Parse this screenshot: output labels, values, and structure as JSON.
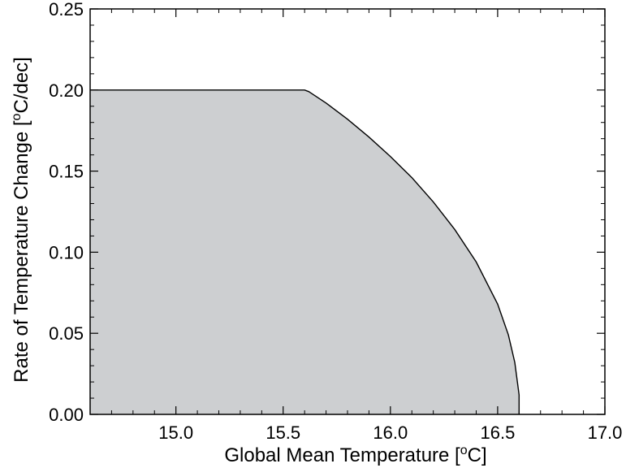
{
  "chart_data": {
    "type": "area",
    "title": "",
    "xlabel": {
      "main": "Global Mean Temperature [",
      "sup": "o",
      "tail": "C]"
    },
    "ylabel": {
      "main": "Rate of Temperature Change [",
      "sup": "o",
      "tail": "C/dec]"
    },
    "xlim": [
      14.6,
      17.0
    ],
    "ylim": [
      0.0,
      0.25
    ],
    "xticks": [
      15.0,
      15.5,
      16.0,
      16.5,
      17.0
    ],
    "xtick_labels": [
      "15.0",
      "15.5",
      "16.0",
      "16.5",
      "17.0"
    ],
    "yticks": [
      0.0,
      0.05,
      0.1,
      0.15,
      0.2,
      0.25
    ],
    "ytick_labels": [
      "0.00",
      "0.05",
      "0.10",
      "0.15",
      "0.20",
      "0.25"
    ],
    "grid": false,
    "fill_color": "#cdcfd1",
    "line_color": "#000000",
    "series": [
      {
        "x": [
          14.6,
          15.6,
          15.62,
          15.7,
          15.8,
          15.9,
          16.0,
          16.1,
          16.2,
          16.3,
          16.4,
          16.5,
          16.55,
          16.58,
          16.6,
          16.6
        ],
        "y": [
          0.2,
          0.2,
          0.199,
          0.192,
          0.182,
          0.171,
          0.159,
          0.146,
          0.131,
          0.114,
          0.094,
          0.068,
          0.049,
          0.032,
          0.012,
          0.0
        ]
      }
    ]
  }
}
